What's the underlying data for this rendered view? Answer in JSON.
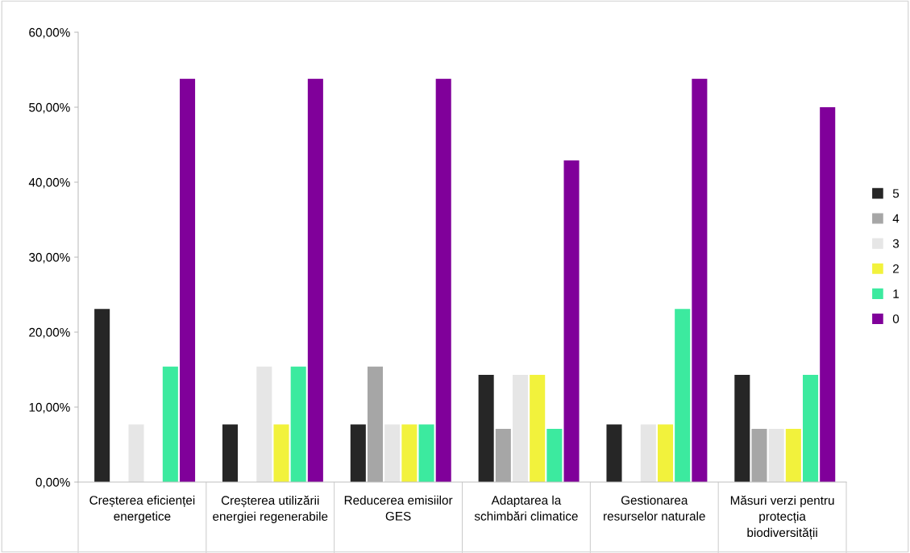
{
  "chart_data": {
    "type": "bar",
    "categories": [
      "Creșterea eficienței energetice",
      "Creșterea utilizării energiei regenerabile",
      "Reducerea emisiilor GES",
      "Adaptarea la schimbări climatice",
      "Gestionarea resurselor naturale",
      "Măsuri verzi pentru protecția biodiversității"
    ],
    "series": [
      {
        "name": "5",
        "color": "#262626",
        "values": [
          23.1,
          7.7,
          7.7,
          14.3,
          7.7,
          14.3
        ]
      },
      {
        "name": "4",
        "color": "#a6a6a6",
        "values": [
          0,
          0,
          15.4,
          7.1,
          0,
          7.1
        ]
      },
      {
        "name": "3",
        "color": "#e6e6e6",
        "values": [
          7.7,
          15.4,
          7.7,
          14.3,
          7.7,
          7.1
        ]
      },
      {
        "name": "2",
        "color": "#f2f23c",
        "values": [
          0,
          7.7,
          7.7,
          14.3,
          7.7,
          7.1
        ]
      },
      {
        "name": "1",
        "color": "#3cea9f",
        "values": [
          15.4,
          15.4,
          7.7,
          7.1,
          23.1,
          14.3
        ]
      },
      {
        "name": "0",
        "color": "#80009a",
        "values": [
          53.8,
          53.8,
          53.8,
          42.9,
          53.8,
          50.0
        ]
      }
    ],
    "ylim": [
      0,
      60
    ],
    "yticks": [
      {
        "value": 0,
        "label": "0,00%"
      },
      {
        "value": 10,
        "label": "10,00%"
      },
      {
        "value": 20,
        "label": "20,00%"
      },
      {
        "value": 30,
        "label": "30,00%"
      },
      {
        "value": 40,
        "label": "40,00%"
      },
      {
        "value": 50,
        "label": "50,00%"
      },
      {
        "value": 60,
        "label": "60,00%"
      }
    ],
    "grid": false,
    "legend": "right"
  }
}
